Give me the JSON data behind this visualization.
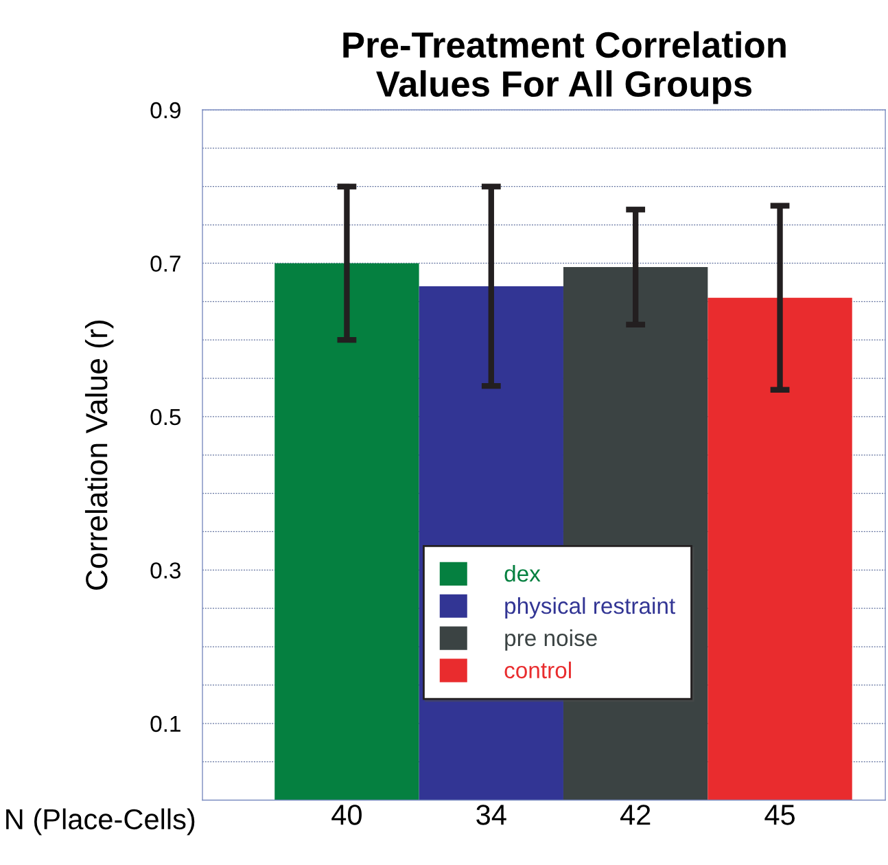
{
  "chart_data": {
    "type": "bar",
    "title": "Pre-Treatment Correlation\nValues For All Groups",
    "xlabel": "N (Place-Cells)",
    "ylabel": "Correlation Value (r)",
    "categories": [
      "40",
      "34",
      "42",
      "45"
    ],
    "series": [
      {
        "name": "dex",
        "color": "#058040",
        "values": [
          0.7,
          null,
          null,
          null
        ],
        "errors": [
          0.1,
          null,
          null,
          null
        ]
      },
      {
        "name": "physical restraint",
        "color": "#323594",
        "values": [
          null,
          0.67,
          null,
          null
        ],
        "errors": [
          null,
          0.13,
          null,
          null
        ]
      },
      {
        "name": "pre noise",
        "color": "#3b4343",
        "values": [
          null,
          null,
          0.695,
          null
        ],
        "errors": [
          null,
          null,
          0.075,
          null
        ]
      },
      {
        "name": "control",
        "color": "#e92c2e",
        "values": [
          null,
          null,
          null,
          0.655
        ],
        "errors": [
          null,
          null,
          null,
          0.12
        ]
      }
    ],
    "ylim": [
      0,
      0.9
    ],
    "yticks": [
      {
        "value": 0.05,
        "label": null
      },
      0.1,
      {
        "value": 0.15,
        "label": null
      },
      {
        "value": 0.2,
        "label": null
      },
      {
        "value": 0.25,
        "label": null
      },
      0.3,
      {
        "value": 0.35,
        "label": null
      },
      {
        "value": 0.4,
        "label": null
      },
      {
        "value": 0.45,
        "label": null
      },
      0.5,
      {
        "value": 0.55,
        "label": null
      },
      {
        "value": 0.6,
        "label": null
      },
      {
        "value": 0.65,
        "label": null
      },
      0.7,
      {
        "value": 0.75,
        "label": null
      },
      {
        "value": 0.8,
        "label": null
      },
      {
        "value": 0.85,
        "label": null
      },
      0.9
    ],
    "grid": "y",
    "legend": "bottom"
  }
}
